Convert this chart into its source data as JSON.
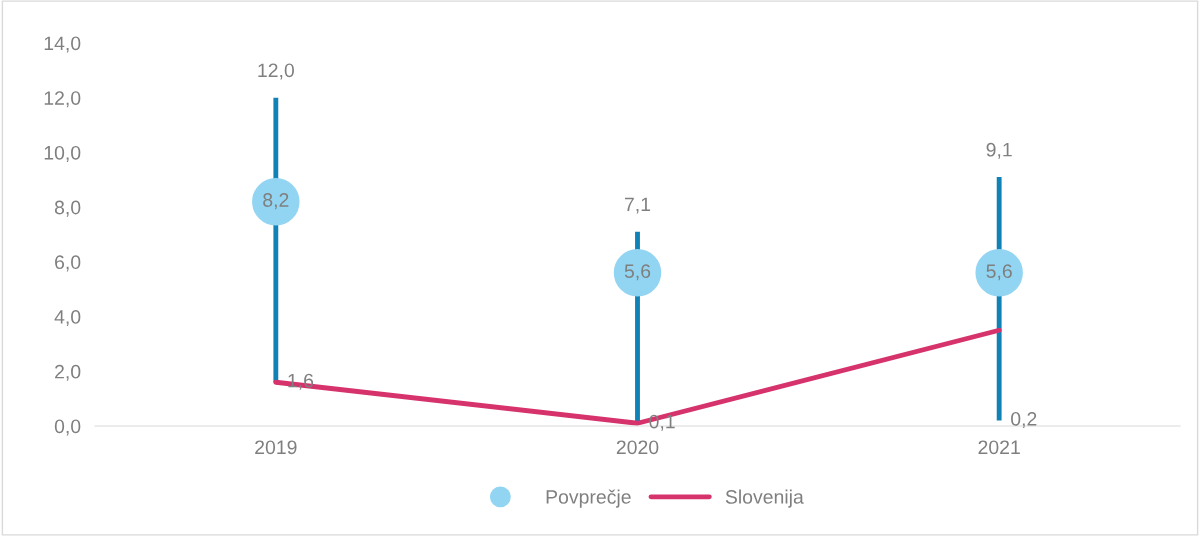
{
  "chart_data": {
    "type": "line",
    "categories": [
      "2019",
      "2020",
      "2021"
    ],
    "series": [
      {
        "name": "Povprečje",
        "type": "scatter",
        "color": "#92d5f2",
        "marker": "circle",
        "values": [
          8.2,
          5.6,
          5.6
        ],
        "errors": [
          [
            1.6,
            12.0
          ],
          [
            0.1,
            7.1
          ],
          [
            0.2,
            9.1
          ]
        ],
        "value_labels": [
          "8,2",
          "5,6",
          "5,6"
        ]
      },
      {
        "name": "Slovenija",
        "color": "#d6336c",
        "marker": "none",
        "line_style": "solid",
        "values": [
          1.6,
          0.1,
          3.5
        ]
      }
    ],
    "annotations": [
      {
        "text": "12,0",
        "x": "2019",
        "y": 12.0
      },
      {
        "text": "1,6",
        "x": "2019",
        "y": 1.6
      },
      {
        "text": "7,1",
        "x": "2020",
        "y": 7.1
      },
      {
        "text": "0,1",
        "x": "2020",
        "y": 0.1
      },
      {
        "text": "9,1",
        "x": "2021",
        "y": 9.1
      },
      {
        "text": "0,2",
        "x": "2021",
        "y": 0.2
      }
    ],
    "ylim": [
      0,
      14
    ],
    "yticks": [
      {
        "value": 0,
        "label": "0,0"
      },
      {
        "value": 2,
        "label": "2,0"
      },
      {
        "value": 4,
        "label": "4,0"
      },
      {
        "value": 6,
        "label": "6,0"
      },
      {
        "value": 8,
        "label": "8,0"
      },
      {
        "value": 10,
        "label": "10,0"
      },
      {
        "value": 12,
        "label": "12,0"
      },
      {
        "value": 14,
        "label": "14,0"
      }
    ],
    "grid": false,
    "legend": "bottom"
  }
}
